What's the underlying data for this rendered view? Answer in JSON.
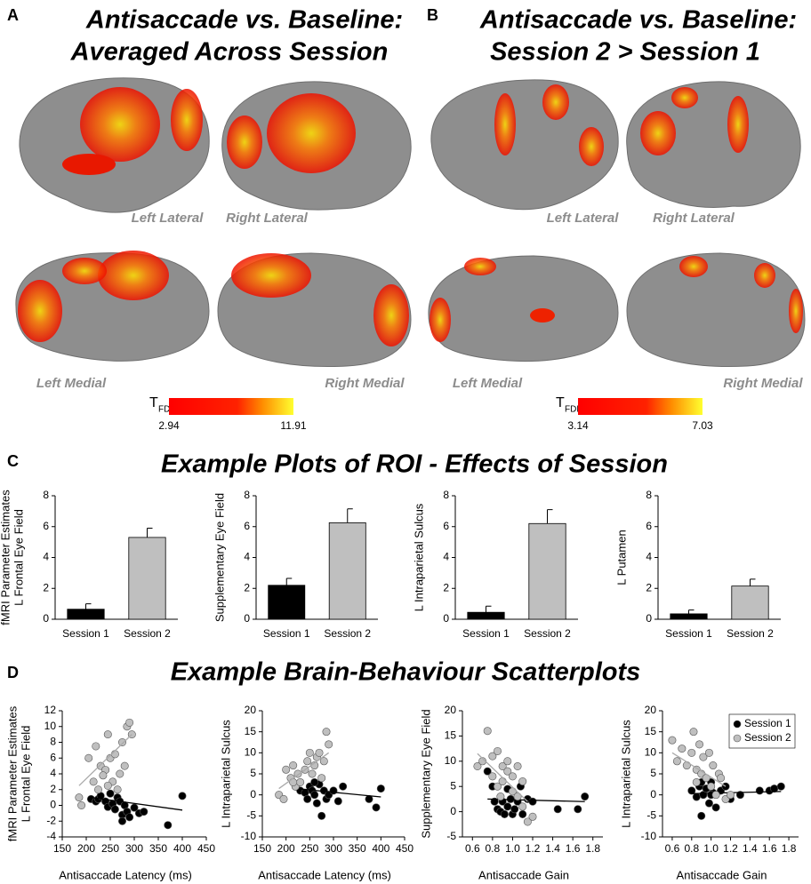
{
  "sections": {
    "A": {
      "label": "A",
      "title": [
        "Antisaccade vs. Baseline:",
        "Averaged Across Session"
      ],
      "views": [
        "Left Lateral",
        "Right Lateral",
        "Left Medial",
        "Right Medial"
      ],
      "colorbar": {
        "symbol": "T",
        "subscript": "FDR",
        "min": 2.94,
        "max": 11.91
      }
    },
    "B": {
      "label": "B",
      "title": [
        "Antisaccade vs. Baseline:",
        "Session 2 > Session 1"
      ],
      "views": [
        "Left Lateral",
        "Right Lateral",
        "Left Medial",
        "Right Medial"
      ],
      "colorbar": {
        "symbol": "T",
        "subscript": "FDR",
        "min": 3.14,
        "max": 7.03
      }
    },
    "C": {
      "label": "C",
      "title": "Example Plots of ROI - Effects of Session"
    },
    "D": {
      "label": "D",
      "title": "Example Brain-Behaviour Scatterplots"
    }
  },
  "chart_data": [
    {
      "type": "bar",
      "ylabel": [
        "fMRI Parameter Estimates",
        "L Frontal Eye Field"
      ],
      "categories": [
        "Session 1",
        "Session 2"
      ],
      "values": [
        0.65,
        5.3
      ],
      "errors": [
        0.35,
        0.6
      ],
      "colors": [
        "#000000",
        "#bfbfbf"
      ],
      "ylim": [
        0,
        8
      ],
      "yticks": [
        0,
        2,
        4,
        6,
        8
      ]
    },
    {
      "type": "bar",
      "ylabel": [
        "Supplementary Eye Field"
      ],
      "categories": [
        "Session 1",
        "Session 2"
      ],
      "values": [
        2.2,
        6.25
      ],
      "errors": [
        0.45,
        0.9
      ],
      "colors": [
        "#000000",
        "#bfbfbf"
      ],
      "ylim": [
        0,
        8
      ],
      "yticks": [
        0,
        2,
        4,
        6,
        8
      ]
    },
    {
      "type": "bar",
      "ylabel": [
        "L Intraparietal Sulcus"
      ],
      "categories": [
        "Session 1",
        "Session 2"
      ],
      "values": [
        0.45,
        6.2
      ],
      "errors": [
        0.4,
        0.9
      ],
      "colors": [
        "#000000",
        "#bfbfbf"
      ],
      "ylim": [
        0,
        8
      ],
      "yticks": [
        0,
        2,
        4,
        6,
        8
      ]
    },
    {
      "type": "bar",
      "ylabel": [
        "L Putamen"
      ],
      "categories": [
        "Session 1",
        "Session 2"
      ],
      "values": [
        0.35,
        2.15
      ],
      "errors": [
        0.25,
        0.45
      ],
      "colors": [
        "#000000",
        "#bfbfbf"
      ],
      "ylim": [
        0,
        8
      ],
      "yticks": [
        0,
        2,
        4,
        6,
        8
      ]
    },
    {
      "type": "scatter",
      "ylabel": [
        "fMRI Parameter Estimates",
        "L Frontal Eye Field"
      ],
      "xlabel": "Antisaccade Latency (ms)",
      "xlim": [
        150,
        450
      ],
      "xticks": [
        150,
        200,
        250,
        300,
        350,
        400,
        450
      ],
      "ylim": [
        -4,
        12
      ],
      "yticks": [
        -4,
        -2,
        0,
        2,
        4,
        6,
        8,
        10,
        12
      ],
      "series": [
        {
          "name": "Session 1",
          "color": "#000000",
          "x": [
            210,
            220,
            225,
            230,
            240,
            245,
            250,
            255,
            260,
            265,
            270,
            275,
            280,
            285,
            290,
            300,
            310,
            320,
            370,
            400,
            275
          ],
          "y": [
            0.8,
            0.5,
            0.8,
            1.2,
            0.5,
            -0.2,
            1.5,
            0.2,
            -0.5,
            1,
            0.5,
            -1.2,
            0,
            -0.8,
            -1.5,
            -0.3,
            -1,
            -0.8,
            -2.5,
            1.2,
            -2
          ],
          "fit": {
            "x": [
              210,
              400
            ],
            "y": [
              1,
              -0.6
            ]
          }
        },
        {
          "name": "Session 2",
          "color": "#bfbfbf",
          "x": [
            185,
            190,
            205,
            215,
            220,
            225,
            230,
            240,
            245,
            250,
            255,
            260,
            265,
            270,
            275,
            280,
            285,
            290,
            295,
            245,
            235
          ],
          "y": [
            1,
            0,
            6,
            3,
            7.5,
            2,
            5,
            4.5,
            9,
            6,
            3,
            6.5,
            2,
            4,
            8,
            5,
            10,
            10.5,
            9,
            2.5,
            3.8
          ],
          "fit": {
            "x": [
              185,
              295
            ],
            "y": [
              2.5,
              9
            ]
          }
        }
      ]
    },
    {
      "type": "scatter",
      "ylabel": [
        "L Intraparietal Sulcus"
      ],
      "xlabel": "Antisaccade Latency (ms)",
      "xlim": [
        150,
        450
      ],
      "xticks": [
        150,
        200,
        250,
        300,
        350,
        400,
        450
      ],
      "ylim": [
        -10,
        20
      ],
      "yticks": [
        -10,
        -5,
        0,
        5,
        10,
        15,
        20
      ],
      "series": [
        {
          "name": "Session 1",
          "color": "#000000",
          "x": [
            220,
            230,
            240,
            245,
            250,
            255,
            260,
            265,
            270,
            275,
            280,
            285,
            290,
            300,
            310,
            320,
            375,
            390,
            400,
            260
          ],
          "y": [
            2,
            1,
            0.5,
            -1,
            2,
            1,
            0,
            -2,
            2.5,
            -5,
            1,
            -1,
            0,
            1,
            -1.5,
            2,
            -1,
            -3,
            1.5,
            3
          ],
          "fit": {
            "x": [
              220,
              400
            ],
            "y": [
              1.5,
              -0.5
            ]
          }
        },
        {
          "name": "Session 2",
          "color": "#bfbfbf",
          "x": [
            185,
            195,
            200,
            210,
            215,
            220,
            225,
            230,
            240,
            245,
            250,
            255,
            260,
            265,
            270,
            275,
            280,
            285,
            290,
            215
          ],
          "y": [
            0,
            -1,
            6,
            4,
            7,
            2,
            5,
            3,
            6,
            8,
            10,
            5,
            7,
            9,
            10,
            4,
            8,
            15,
            12,
            3
          ],
          "fit": {
            "x": [
              185,
              290
            ],
            "y": [
              1.5,
              10
            ]
          }
        }
      ]
    },
    {
      "type": "scatter",
      "ylabel": [
        "Supplementary Eye Field"
      ],
      "xlabel": "Antisaccade Gain",
      "xlim": [
        0.5,
        1.9
      ],
      "xticks": [
        0.6,
        0.8,
        {
          "value": 1,
          "label": "1.0"
        },
        1.2,
        1.4,
        1.6,
        1.8
      ],
      "ylim": [
        -5,
        20
      ],
      "yticks": [
        -5,
        0,
        5,
        10,
        15,
        20
      ],
      "series": [
        {
          "name": "Session 1",
          "color": "#000000",
          "x": [
            0.75,
            0.8,
            0.82,
            0.85,
            0.88,
            0.9,
            0.92,
            0.95,
            0.98,
            1.0,
            1.02,
            1.05,
            1.08,
            1.1,
            1.15,
            1.2,
            1.45,
            1.65,
            1.72,
            0.95
          ],
          "y": [
            8,
            5,
            2,
            0.5,
            0,
            2,
            -0.5,
            1,
            2.5,
            -0.5,
            0.5,
            2,
            5,
            -0.5,
            2.5,
            2,
            0.5,
            0.5,
            3,
            4.5
          ],
          "fit": {
            "x": [
              0.75,
              1.72
            ],
            "y": [
              2.5,
              2
            ]
          }
        },
        {
          "name": "Session 2",
          "color": "#bfbfbf",
          "x": [
            0.65,
            0.7,
            0.75,
            0.8,
            0.8,
            0.85,
            0.85,
            0.9,
            0.9,
            0.95,
            0.95,
            1.0,
            1.0,
            1.05,
            1.05,
            1.1,
            1.1,
            1.15,
            1.2,
            0.88
          ],
          "y": [
            9,
            10,
            16,
            11,
            7,
            12,
            5,
            9,
            6,
            8,
            10,
            4,
            7,
            3,
            9,
            1,
            6,
            -2,
            -1,
            3
          ],
          "fit": {
            "x": [
              0.65,
              1.15
            ],
            "y": [
              11.5,
              2
            ]
          }
        }
      ]
    },
    {
      "type": "scatter",
      "ylabel": [
        "L Intraparietal Sulcus"
      ],
      "xlabel": "Antisaccade Gain",
      "legend": "upper right",
      "xlim": [
        0.5,
        1.9
      ],
      "xticks": [
        0.6,
        0.8,
        {
          "value": 1,
          "label": "1.0"
        },
        1.2,
        1.4,
        1.6,
        1.8
      ],
      "ylim": [
        -10,
        20
      ],
      "yticks": [
        -10,
        -5,
        0,
        5,
        10,
        15,
        20
      ],
      "series": [
        {
          "name": "Session 1",
          "color": "#000000",
          "x": [
            0.8,
            0.85,
            0.88,
            0.9,
            0.92,
            0.95,
            0.98,
            1.0,
            1.02,
            1.05,
            1.1,
            1.15,
            1.2,
            1.3,
            1.5,
            1.6,
            1.65,
            1.72,
            0.9,
            1.0
          ],
          "y": [
            1,
            -0.5,
            2,
            -5,
            0,
            1.5,
            -2,
            3,
            0.5,
            -3,
            1,
            2,
            -1,
            0,
            1,
            1,
            1.5,
            2,
            3,
            0
          ],
          "fit": {
            "x": [
              0.8,
              1.72
            ],
            "y": [
              0.3,
              0.8
            ]
          }
        },
        {
          "name": "Session 2",
          "color": "#bfbfbf",
          "x": [
            0.6,
            0.65,
            0.7,
            0.75,
            0.8,
            0.82,
            0.85,
            0.88,
            0.9,
            0.92,
            0.95,
            0.98,
            1.0,
            1.02,
            1.05,
            1.08,
            1.1,
            1.15,
            1.2,
            0.85
          ],
          "y": [
            13,
            8,
            11,
            7,
            10,
            15,
            6,
            12,
            5,
            9,
            4,
            10,
            2,
            7,
            0,
            5,
            4,
            -1,
            0,
            3
          ],
          "fit": {
            "x": [
              0.6,
              1.15
            ],
            "y": [
              10,
              2
            ]
          }
        }
      ]
    }
  ]
}
